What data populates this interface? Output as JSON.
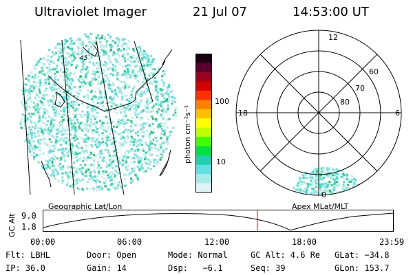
{
  "header": {
    "instrument": "Ultraviolet Imager",
    "date": "21 Jul 07",
    "time": "14:53:00 UT"
  },
  "geo_panel": {
    "label": "Geographic Lat/Lon",
    "lat_tick": "45"
  },
  "colorbar": {
    "unit_label": "photon cm⁻²s⁻¹",
    "ticks": [
      {
        "label": "100",
        "value": 100
      },
      {
        "label": "10",
        "value": 10
      }
    ],
    "colors": [
      "#1a0010",
      "#5a0030",
      "#9c0020",
      "#d40000",
      "#ff3000",
      "#ff8000",
      "#ffc000",
      "#ffff00",
      "#c0ff00",
      "#40ff00",
      "#00e040",
      "#20d0b0",
      "#60e0e0",
      "#a8eaea",
      "#dff4f4"
    ],
    "accent_color": "#20d0c0"
  },
  "polar_panel": {
    "label": "Apex MLat/MLT",
    "mlt_labels": {
      "top": "12",
      "left": "18",
      "right": "6",
      "bottom": "0"
    },
    "lat_labels": [
      "60",
      "70",
      "80"
    ]
  },
  "alt_plot": {
    "ylabel": "GC Alt",
    "yticks": [
      "9.0",
      "1.8"
    ],
    "xticks": [
      "00:00",
      "06:00",
      "12:00",
      "18:00",
      "23:59"
    ],
    "current_time_marker": "14:53",
    "marker_color": "#ff0000"
  },
  "info": {
    "row1": {
      "flt": "Flt: LBHL",
      "door": "Door: Open",
      "mode": "Mode: Normal",
      "gcalt": "GC Alt: 4.6 Re",
      "glat": "GLat: −34.8"
    },
    "row2": {
      "ip": "IP: 36.0",
      "gain": "Gain: 14",
      "dsp": "Dsp:   −6.1",
      "seq": "Seq: 39",
      "glon": "GLon: 153.7"
    }
  }
}
